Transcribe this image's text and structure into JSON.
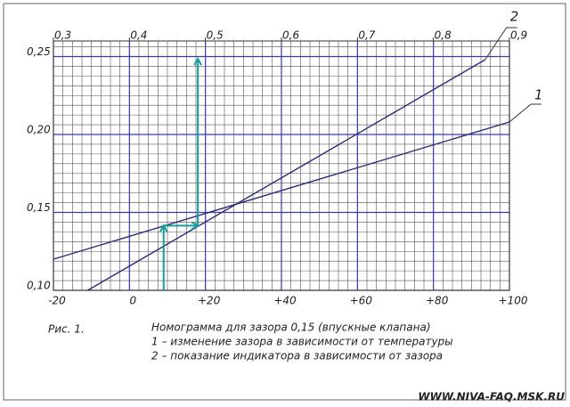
{
  "chart_data": {
    "type": "line",
    "caption_label": "Рис. 1.",
    "title": "Номограмма для зазора 0,15 (впускные клапана)",
    "notes": [
      "1 – изменение зазора в зависимости от температуры",
      "2 – показание индикатора в зависимости от зазора"
    ],
    "watermark": "WWW.NIVA-FAQ.MSK.RU",
    "xlim": [
      -20,
      100
    ],
    "xticks": [
      {
        "value": -20,
        "label": "-20"
      },
      0,
      {
        "value": 20,
        "label": "+20"
      },
      {
        "value": 40,
        "label": "+40"
      },
      {
        "value": 60,
        "label": "+60"
      },
      {
        "value": 80,
        "label": "+80"
      },
      {
        "value": 100,
        "label": "+100"
      }
    ],
    "x2lim": [
      0.3,
      0.9
    ],
    "x2ticks": [
      {
        "value": 0.3,
        "label": "0,3"
      },
      {
        "value": 0.4,
        "label": "0,4"
      },
      {
        "value": 0.5,
        "label": "0,5"
      },
      {
        "value": 0.6,
        "label": "0,6"
      },
      {
        "value": 0.7,
        "label": "0,7"
      },
      {
        "value": 0.8,
        "label": "0,8"
      },
      {
        "value": 0.9,
        "label": "0,9"
      }
    ],
    "ylim": [
      0.1,
      0.26
    ],
    "yticks": [
      {
        "value": 0.1,
        "label": "0,10"
      },
      {
        "value": 0.15,
        "label": "0,15"
      },
      {
        "value": 0.2,
        "label": "0,20"
      },
      {
        "value": 0.25,
        "label": "0,25"
      }
    ],
    "grid": true,
    "series": [
      {
        "name": "1",
        "color": "#2b2b7a",
        "x": [
          -20,
          100
        ],
        "values": [
          0.12,
          0.208
        ]
      },
      {
        "name": "2",
        "color": "#2b2b7a",
        "axis": "x2",
        "x": [
          0.345,
          0.868
        ],
        "values": [
          0.1,
          0.248
        ]
      }
    ],
    "example": {
      "temperature": 9,
      "clearance": 0.1415,
      "indicator": 0.49,
      "color": "#179c9c"
    }
  }
}
